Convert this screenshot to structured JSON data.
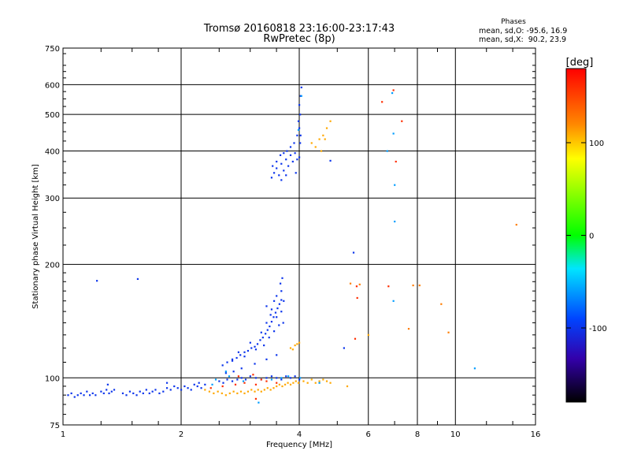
{
  "chart_data": {
    "type": "scatter",
    "title": "Tromsø 20160818 23:16:00-23:17:43",
    "subtitle": "RwPretec (8p)",
    "xlabel": "Frequency [MHz]",
    "ylabel": "Stationary phase Virtual Height [km]",
    "x_scale": "log2",
    "y_scale": "log",
    "xlim": [
      1,
      16
    ],
    "ylim": [
      75,
      750
    ],
    "x_ticks": [
      1,
      2,
      4,
      6,
      8,
      10,
      16
    ],
    "y_ticks": [
      75,
      100,
      200,
      300,
      400,
      500,
      600,
      750
    ],
    "grid": true,
    "stats": {
      "heading": "Phases",
      "line_o": "mean, sd,O: -95.6, 16.9",
      "line_x": "mean, sd,X:  90.2, 23.9"
    },
    "colorbar": {
      "label": "[deg]",
      "ticks": [
        100,
        0,
        -100
      ],
      "range": [
        -180,
        180
      ]
    },
    "series": [
      {
        "points": [
          [
            1.03,
            90
          ],
          [
            1.05,
            91
          ],
          [
            1.07,
            89
          ],
          [
            1.09,
            90
          ],
          [
            1.11,
            91
          ],
          [
            1.13,
            90
          ],
          [
            1.15,
            92
          ],
          [
            1.17,
            90
          ],
          [
            1.19,
            91
          ],
          [
            1.21,
            90
          ],
          [
            1.25,
            92
          ],
          [
            1.27,
            91
          ],
          [
            1.29,
            93
          ],
          [
            1.31,
            91
          ],
          [
            1.33,
            92
          ],
          [
            1.35,
            93
          ],
          [
            1.3,
            96
          ],
          [
            1.42,
            91
          ],
          [
            1.45,
            90
          ],
          [
            1.48,
            92
          ],
          [
            1.51,
            91
          ],
          [
            1.54,
            90
          ],
          [
            1.57,
            92
          ],
          [
            1.6,
            91
          ],
          [
            1.63,
            93
          ],
          [
            1.66,
            91
          ],
          [
            1.69,
            92
          ],
          [
            1.72,
            93
          ],
          [
            1.76,
            91
          ],
          [
            1.8,
            92
          ],
          [
            1.84,
            94
          ],
          [
            1.88,
            93
          ],
          [
            1.92,
            95
          ],
          [
            1.96,
            94
          ],
          [
            2.0,
            93
          ],
          [
            2.04,
            95
          ],
          [
            2.08,
            94
          ],
          [
            2.12,
            93
          ],
          [
            2.16,
            96
          ],
          [
            2.2,
            95
          ],
          [
            2.25,
            94
          ],
          [
            2.3,
            96
          ],
          [
            1.84,
            97
          ],
          [
            2.22,
            97
          ],
          [
            2.5,
            98
          ],
          [
            2.56,
            97
          ],
          [
            2.62,
            99
          ],
          [
            2.7,
            98
          ],
          [
            2.78,
            99
          ],
          [
            2.85,
            100
          ],
          [
            2.92,
            99
          ],
          [
            3.0,
            101
          ],
          [
            3.1,
            100
          ],
          [
            3.2,
            99
          ],
          [
            3.3,
            100
          ],
          [
            3.4,
            101
          ],
          [
            3.5,
            100
          ],
          [
            3.6,
            99
          ],
          [
            3.7,
            101
          ],
          [
            3.8,
            100
          ],
          [
            3.9,
            101
          ],
          [
            4.0,
            99
          ],
          [
            2.6,
            103
          ],
          [
            2.72,
            104
          ],
          [
            2.85,
            106
          ],
          [
            3.08,
            109
          ],
          [
            3.3,
            112
          ],
          [
            3.5,
            115
          ],
          [
            2.55,
            108
          ],
          [
            2.62,
            110
          ],
          [
            2.7,
            111
          ],
          [
            2.77,
            113
          ],
          [
            2.83,
            115
          ],
          [
            2.9,
            117
          ],
          [
            2.96,
            118
          ],
          [
            3.02,
            120
          ],
          [
            3.08,
            121
          ],
          [
            3.13,
            123
          ],
          [
            3.18,
            126
          ],
          [
            3.23,
            128
          ],
          [
            3.28,
            131
          ],
          [
            3.32,
            134
          ],
          [
            3.36,
            137
          ],
          [
            3.4,
            141
          ],
          [
            3.44,
            145
          ],
          [
            3.48,
            149
          ],
          [
            3.52,
            153
          ],
          [
            3.56,
            157
          ],
          [
            3.6,
            161
          ],
          [
            2.7,
            112
          ],
          [
            2.8,
            117
          ],
          [
            2.9,
            114
          ],
          [
            3.0,
            124
          ],
          [
            3.1,
            119
          ],
          [
            3.2,
            132
          ],
          [
            3.25,
            122
          ],
          [
            3.3,
            140
          ],
          [
            3.35,
            128
          ],
          [
            3.4,
            152
          ],
          [
            3.45,
            133
          ],
          [
            3.5,
            165
          ],
          [
            3.55,
            138
          ],
          [
            3.6,
            170
          ],
          [
            3.58,
            178
          ],
          [
            3.62,
            184
          ],
          [
            3.45,
            160
          ],
          [
            3.38,
            147
          ],
          [
            3.3,
            155
          ],
          [
            3.5,
            145
          ],
          [
            3.6,
            150
          ],
          [
            3.65,
            160
          ],
          [
            3.64,
            140
          ],
          [
            1.22,
            181
          ],
          [
            1.55,
            183
          ],
          [
            3.4,
            340
          ],
          [
            3.45,
            350
          ],
          [
            3.5,
            360
          ],
          [
            3.55,
            345
          ],
          [
            3.6,
            370
          ],
          [
            3.65,
            355
          ],
          [
            3.7,
            380
          ],
          [
            3.75,
            365
          ],
          [
            3.8,
            390
          ],
          [
            3.85,
            375
          ],
          [
            3.9,
            395
          ],
          [
            3.95,
            380
          ],
          [
            4.0,
            385
          ],
          [
            3.42,
            365
          ],
          [
            3.5,
            375
          ],
          [
            3.58,
            390
          ],
          [
            3.65,
            395
          ],
          [
            3.72,
            400
          ],
          [
            3.8,
            410
          ],
          [
            3.88,
            420
          ],
          [
            3.95,
            440
          ],
          [
            4.0,
            460
          ],
          [
            3.98,
            480
          ],
          [
            4.02,
            500
          ],
          [
            4.0,
            530
          ],
          [
            4.03,
            560
          ],
          [
            4.05,
            590
          ],
          [
            3.6,
            335
          ],
          [
            3.7,
            345
          ],
          [
            3.92,
            350
          ],
          [
            4.02,
            420
          ],
          [
            4.03,
            440
          ],
          [
            4.8,
            377
          ],
          [
            5.5,
            215
          ],
          [
            5.2,
            120
          ]
        ],
        "phase": -100
      },
      {
        "points": [
          [
            2.3,
            93
          ],
          [
            2.36,
            92
          ],
          [
            2.42,
            91
          ],
          [
            2.48,
            92
          ],
          [
            2.54,
            91
          ],
          [
            2.6,
            90
          ],
          [
            2.66,
            91
          ],
          [
            2.72,
            92
          ],
          [
            2.78,
            91
          ],
          [
            2.84,
            92
          ],
          [
            2.9,
            91
          ],
          [
            2.96,
            92
          ],
          [
            3.02,
            93
          ],
          [
            3.08,
            92
          ],
          [
            3.14,
            93
          ],
          [
            3.2,
            92
          ],
          [
            3.26,
            93
          ],
          [
            3.32,
            94
          ],
          [
            3.38,
            93
          ],
          [
            3.44,
            94
          ],
          [
            3.5,
            95
          ],
          [
            3.56,
            96
          ],
          [
            3.62,
            95
          ],
          [
            3.68,
            96
          ],
          [
            3.74,
            97
          ],
          [
            3.8,
            96
          ],
          [
            3.86,
            97
          ],
          [
            3.92,
            98
          ],
          [
            3.98,
            97
          ],
          [
            4.1,
            98
          ],
          [
            4.2,
            97
          ],
          [
            4.3,
            99
          ],
          [
            4.4,
            97
          ],
          [
            4.5,
            98
          ],
          [
            4.6,
            99
          ],
          [
            4.7,
            98
          ],
          [
            4.8,
            97
          ],
          [
            3.8,
            120
          ],
          [
            3.9,
            122
          ],
          [
            4.0,
            124
          ],
          [
            3.95,
            123
          ],
          [
            3.85,
            119
          ],
          [
            4.3,
            420
          ],
          [
            4.4,
            410
          ],
          [
            4.5,
            430
          ],
          [
            4.6,
            440
          ],
          [
            4.7,
            460
          ],
          [
            4.8,
            480
          ],
          [
            4.65,
            430
          ],
          [
            4.55,
            400
          ],
          [
            5.3,
            95
          ],
          [
            6.0,
            130
          ]
        ],
        "phase": 110
      },
      {
        "points": [
          [
            2.38,
            94
          ],
          [
            2.55,
            95
          ],
          [
            2.75,
            96
          ],
          [
            2.9,
            97
          ],
          [
            3.1,
            96
          ],
          [
            3.3,
            98
          ],
          [
            3.5,
            97
          ],
          [
            2.8,
            101
          ],
          [
            3.05,
            102
          ],
          [
            3.2,
            99
          ],
          [
            3.1,
            88
          ],
          [
            6.5,
            540
          ],
          [
            6.95,
            580
          ],
          [
            7.05,
            375
          ],
          [
            6.75,
            175
          ],
          [
            7.3,
            480
          ],
          [
            5.6,
            175
          ],
          [
            5.62,
            163
          ],
          [
            5.55,
            127
          ]
        ],
        "phase": 160
      },
      {
        "points": [
          [
            2.45,
            99
          ],
          [
            2.65,
            101
          ],
          [
            2.88,
            98
          ],
          [
            3.15,
            86
          ],
          [
            3.4,
            99
          ],
          [
            3.6,
            100
          ],
          [
            3.75,
            101
          ],
          [
            4.02,
            100
          ],
          [
            4.5,
            97
          ],
          [
            6.9,
            570
          ],
          [
            6.7,
            400
          ],
          [
            6.95,
            445
          ],
          [
            7.0,
            325
          ],
          [
            7.0,
            260
          ],
          [
            6.95,
            160
          ],
          [
            11.2,
            106
          ],
          [
            4.05,
            560
          ],
          [
            3.98,
            455
          ],
          [
            2.6,
            104
          ],
          [
            2.4,
            96
          ]
        ],
        "phase": -60
      },
      {
        "points": [
          [
            5.4,
            178
          ],
          [
            5.7,
            177
          ],
          [
            7.8,
            176
          ],
          [
            8.1,
            176
          ],
          [
            9.2,
            157
          ],
          [
            9.6,
            132
          ],
          [
            7.6,
            135
          ],
          [
            14.3,
            255
          ]
        ],
        "phase": 125
      }
    ]
  }
}
